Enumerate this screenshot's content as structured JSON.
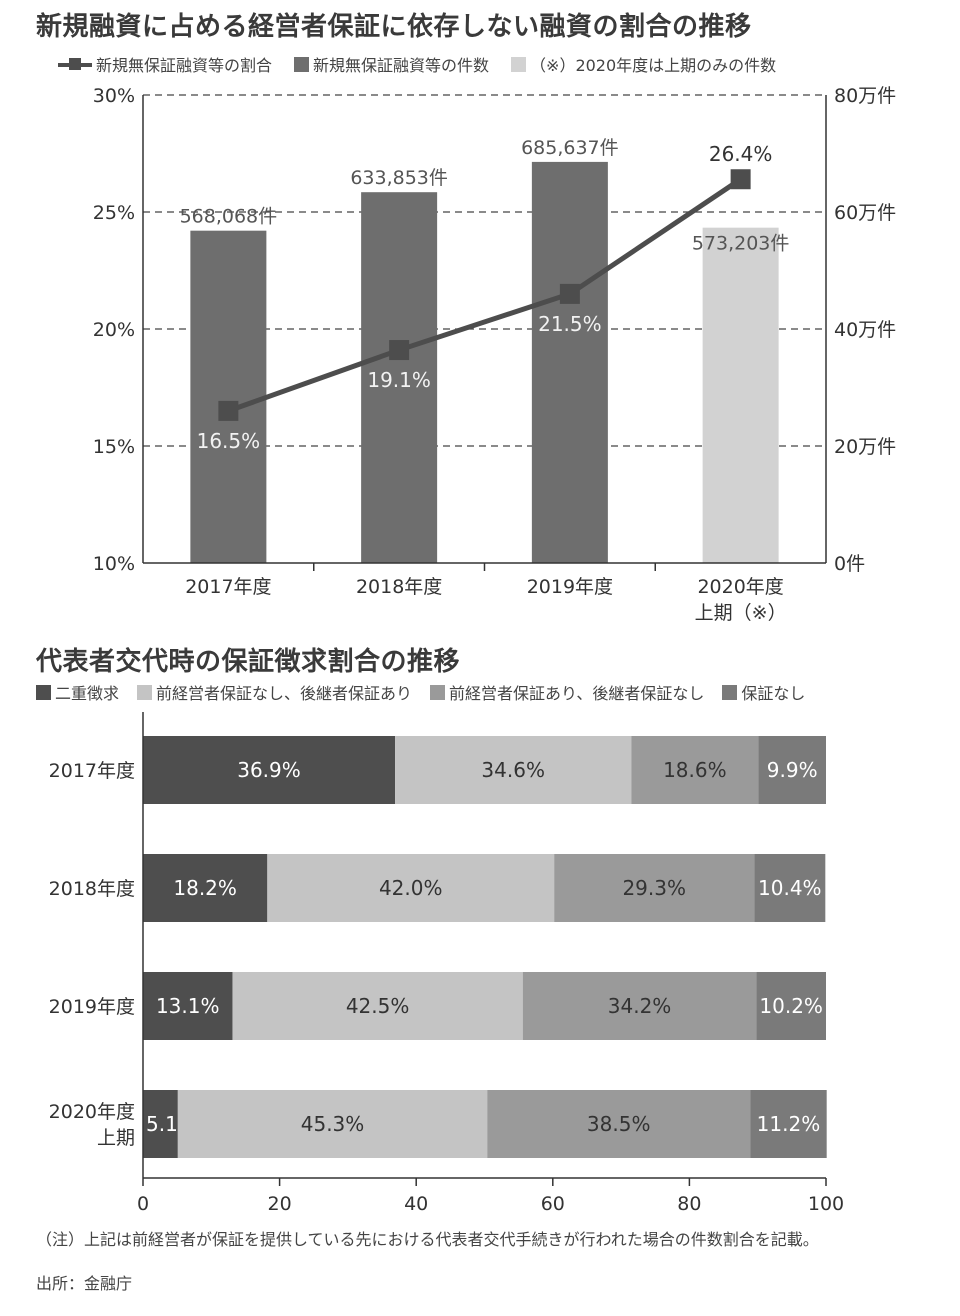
{
  "chart_data": [
    {
      "type": "bar",
      "title": "新規融資に占める経営者保証に依存しない融資の割合の推移",
      "legend": {
        "line_label": "新規無保証融資等の割合",
        "bar_label": "新規無保証融資等の件数",
        "partial_label": "（※）2020年度は上期のみの件数"
      },
      "categories": [
        {
          "line1": "2017年度",
          "line2": ""
        },
        {
          "line1": "2018年度",
          "line2": ""
        },
        {
          "line1": "2019年度",
          "line2": ""
        },
        {
          "line1": "2020年度",
          "line2": "上期（※）"
        }
      ],
      "bar_values": [
        568068,
        633853,
        685637,
        573203
      ],
      "bar_labels": [
        "568,068件",
        "633,853件",
        "685,637件",
        "573,203件"
      ],
      "line_values": [
        16.5,
        19.1,
        21.5,
        26.4
      ],
      "line_labels": [
        "16.5%",
        "19.1%",
        "21.5%",
        "26.4%"
      ],
      "left_axis": {
        "min": 10,
        "max": 30,
        "ticks": [
          "10%",
          "15%",
          "20%",
          "25%",
          "30%"
        ]
      },
      "right_axis": {
        "min": 0,
        "max": 800000,
        "ticks": [
          "0件",
          "20万件",
          "40万件",
          "60万件",
          "80万件"
        ]
      },
      "grid": "dashed horizontal",
      "colors": {
        "bar": "#6e6e6e",
        "bar_partial": "#d2d2d2",
        "line": "#4d4d4d"
      }
    },
    {
      "type": "bar",
      "orientation": "horizontal-stacked",
      "title": "代表者交代時の保証徴求割合の推移",
      "categories": [
        {
          "line1": "2017年度",
          "line2": ""
        },
        {
          "line1": "2018年度",
          "line2": ""
        },
        {
          "line1": "2019年度",
          "line2": ""
        },
        {
          "line1": "2020年度",
          "line2": "上期"
        }
      ],
      "series": [
        {
          "name": "二重徴求",
          "values": [
            36.9,
            18.2,
            13.1,
            5.1
          ],
          "labels": [
            "36.9%",
            "18.2%",
            "13.1%",
            "5.1%"
          ],
          "color": "#4e4e4e"
        },
        {
          "name": "前経営者保証なし、後継者保証あり",
          "values": [
            34.6,
            42.0,
            42.5,
            45.3
          ],
          "labels": [
            "34.6%",
            "42.0%",
            "42.5%",
            "45.3%"
          ],
          "color": "#c4c4c4"
        },
        {
          "name": "前経営者保証あり、後継者保証なし",
          "values": [
            18.6,
            29.3,
            34.2,
            38.5
          ],
          "labels": [
            "18.6%",
            "29.3%",
            "34.2%",
            "38.5%"
          ],
          "color": "#9a9a9a"
        },
        {
          "name": "保証なし",
          "values": [
            9.9,
            10.4,
            10.2,
            11.2
          ],
          "labels": [
            "9.9%",
            "10.4%",
            "10.2%",
            "11.2%"
          ],
          "color": "#7a7a7a"
        }
      ],
      "x_axis": {
        "min": 0,
        "max": 100,
        "ticks": [
          "0",
          "20",
          "40",
          "60",
          "80",
          "100"
        ]
      }
    }
  ],
  "note": "（注）上記は前経営者が保証を提供している先における代表者交代手続きが行われた場合の件数割合を記載。",
  "source": "出所：金融庁"
}
